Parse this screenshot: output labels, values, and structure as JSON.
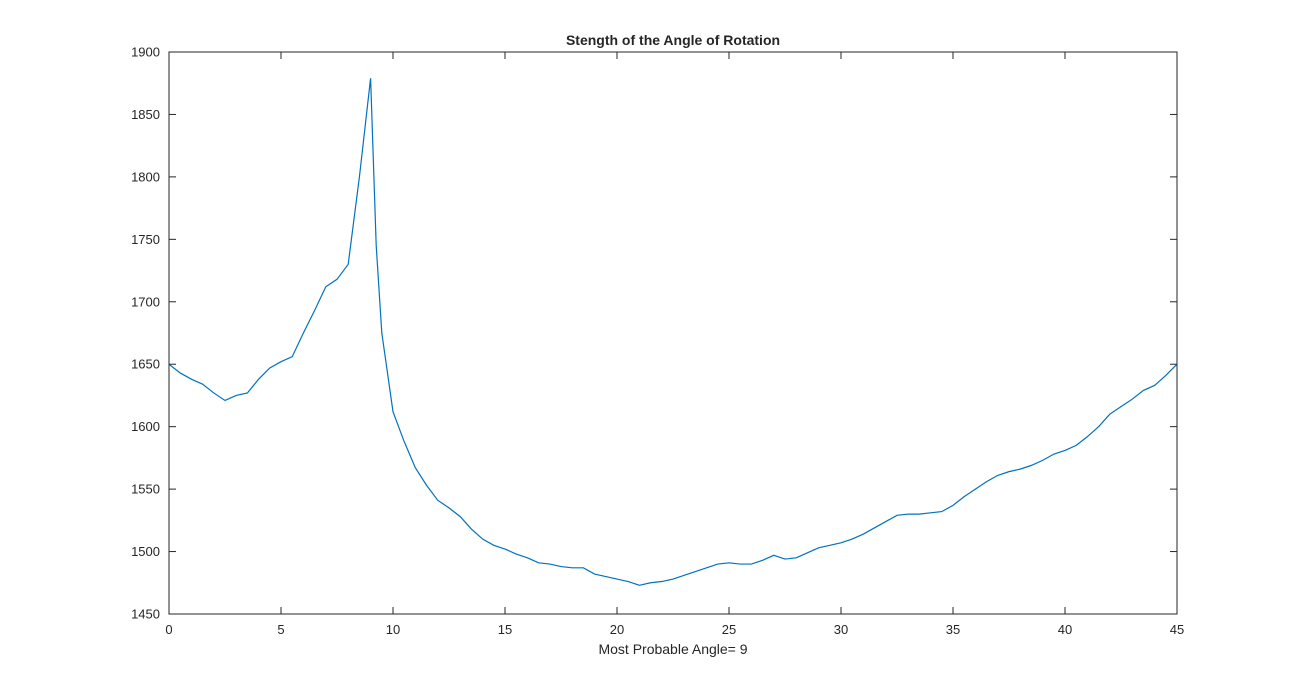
{
  "chart_data": {
    "type": "line",
    "title": "Stength of the Angle of Rotation",
    "xlabel": "Most Probable Angle= 9",
    "ylabel": "",
    "xlim": [
      0,
      45
    ],
    "ylim": [
      1450,
      1900
    ],
    "xticks": [
      0,
      5,
      10,
      15,
      20,
      25,
      30,
      35,
      40,
      45
    ],
    "yticks": [
      1450,
      1500,
      1550,
      1600,
      1650,
      1700,
      1750,
      1800,
      1850,
      1900
    ],
    "grid": false,
    "line_color": "#0072bd",
    "series": [
      {
        "x": [
          0,
          0.5,
          1,
          1.5,
          2,
          2.5,
          3,
          3.5,
          4,
          4.5,
          5,
          5.5,
          6,
          6.5,
          7,
          7.5,
          8,
          8.5,
          9,
          9.25,
          9.5,
          10,
          10.5,
          11,
          11.5,
          12,
          12.5,
          13,
          13.5,
          14,
          14.5,
          15,
          15.5,
          16,
          16.5,
          17,
          17.5,
          18,
          18.5,
          19,
          19.5,
          20,
          20.5,
          21,
          21.5,
          22,
          22.5,
          23,
          23.5,
          24,
          24.5,
          25,
          25.5,
          26,
          26.5,
          27,
          27.5,
          28,
          28.5,
          29,
          29.5,
          30,
          30.5,
          31,
          31.5,
          32,
          32.5,
          33,
          33.5,
          34,
          34.5,
          35,
          35.5,
          36,
          36.5,
          37,
          37.5,
          38,
          38.5,
          39,
          39.5,
          40,
          40.5,
          41,
          41.5,
          42,
          42.5,
          43,
          43.5,
          44,
          44.5,
          45
        ],
        "y": [
          1650,
          1643,
          1638,
          1634,
          1627,
          1621,
          1625,
          1627,
          1638,
          1647,
          1652,
          1656,
          1675,
          1693,
          1712,
          1718,
          1730,
          1800,
          1879,
          1745,
          1675,
          1612,
          1588,
          1567,
          1553,
          1541,
          1535,
          1528,
          1518,
          1510,
          1505,
          1502,
          1498,
          1495,
          1491,
          1490,
          1488,
          1487,
          1487,
          1482,
          1480,
          1478,
          1476,
          1473,
          1475,
          1476,
          1478,
          1481,
          1484,
          1487,
          1490,
          1491,
          1490,
          1490,
          1493,
          1497,
          1494,
          1495,
          1499,
          1503,
          1505,
          1507,
          1510,
          1514,
          1519,
          1524,
          1529,
          1530,
          1530,
          1531,
          1532,
          1537,
          1544,
          1550,
          1556,
          1561,
          1564,
          1566,
          1569,
          1573,
          1578,
          1581,
          1585,
          1592,
          1600,
          1610,
          1616,
          1622,
          1629,
          1633,
          1641,
          1650
        ]
      }
    ]
  }
}
